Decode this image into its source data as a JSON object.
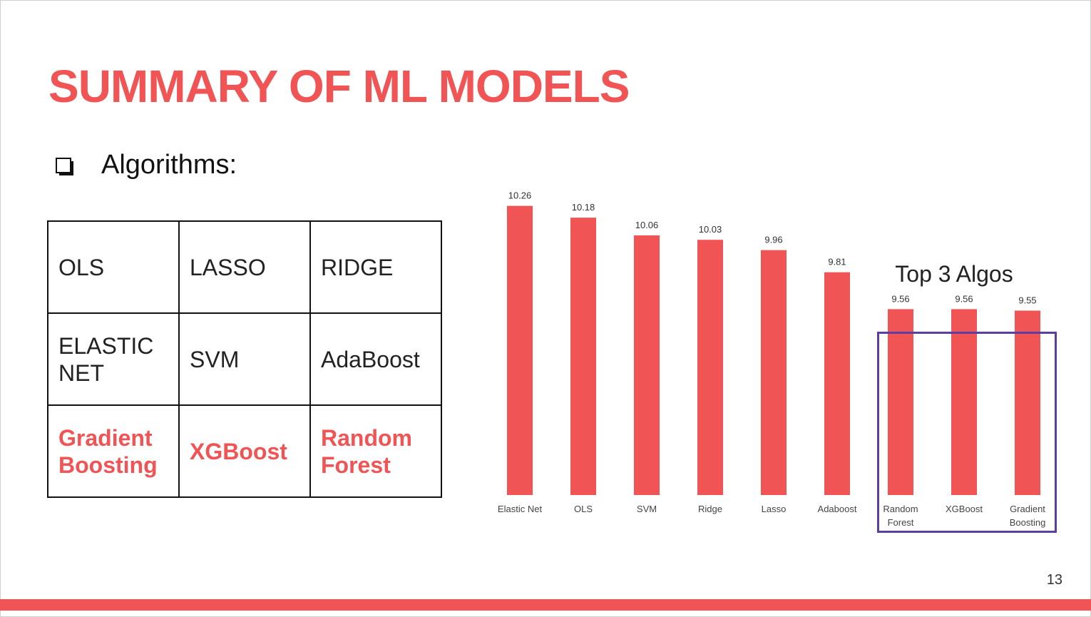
{
  "slide": {
    "title": "SUMMARY OF ML MODELS",
    "bullet": "Algorithms:",
    "page_number": "13"
  },
  "table": {
    "rows": [
      [
        {
          "text": "OLS",
          "highlight": false
        },
        {
          "text": "LASSO",
          "highlight": false
        },
        {
          "text": "RIDGE",
          "highlight": false
        }
      ],
      [
        {
          "text": "ELASTIC NET",
          "highlight": false
        },
        {
          "text": "SVM",
          "highlight": false
        },
        {
          "text": "AdaBoost",
          "highlight": false
        }
      ],
      [
        {
          "text": "Gradient Boosting",
          "highlight": true
        },
        {
          "text": "XGBoost",
          "highlight": true
        },
        {
          "text": "Random Forest",
          "highlight": true
        }
      ]
    ]
  },
  "annotation": {
    "top3_label": "Top 3 Algos"
  },
  "colors": {
    "accent": "#f05454",
    "bar": "#f05454",
    "highlight_box": "#5b3fa0"
  },
  "chart_data": {
    "type": "bar",
    "categories": [
      "Elastic Net",
      "OLS",
      "SVM",
      "Ridge",
      "Lasso",
      "Adaboost",
      "Random Forest",
      "XGBoost",
      "Gradient Boosting"
    ],
    "category_lines": [
      [
        "Elastic Net"
      ],
      [
        "OLS"
      ],
      [
        "SVM"
      ],
      [
        "Ridge"
      ],
      [
        "Lasso"
      ],
      [
        "Adaboost"
      ],
      [
        "Random",
        "Forest"
      ],
      [
        "XGBoost"
      ],
      [
        "Gradient",
        "Boosting"
      ]
    ],
    "values": [
      10.26,
      10.18,
      10.06,
      10.03,
      9.96,
      9.81,
      9.56,
      9.56,
      9.55
    ],
    "data_labels": [
      "10.26",
      "10.18",
      "10.06",
      "10.03",
      "9.96",
      "9.81",
      "9.56",
      "9.56",
      "9.55"
    ],
    "title": "",
    "xlabel": "",
    "ylabel": "",
    "ylim": [
      8.3,
      10.35
    ],
    "grid": false,
    "legend": "none",
    "highlighted_categories": [
      "Random Forest",
      "XGBoost",
      "Gradient Boosting"
    ]
  }
}
